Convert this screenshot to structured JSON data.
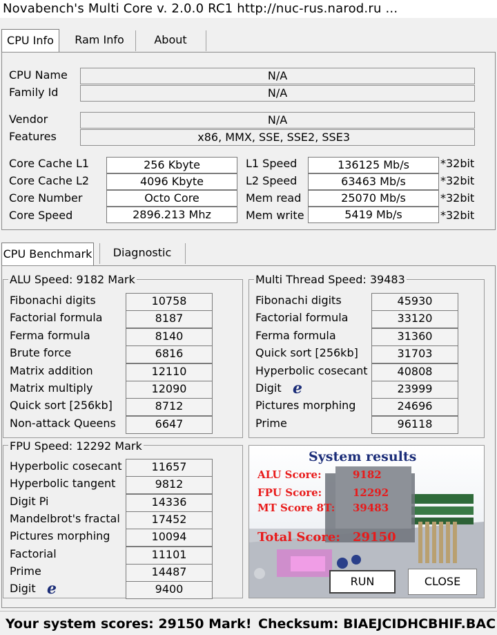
{
  "window": {
    "title": "Novabench's Multi Core  v. 2.0.0  RC1  http://nuc-rus.narod.ru ..."
  },
  "main_tabs": [
    "CPU Info",
    "Ram Info",
    "About"
  ],
  "cpu_info": {
    "cpu_name_label": "CPU Name",
    "cpu_name": "N/A",
    "family_label": "Family Id",
    "family": "N/A",
    "vendor_label": "Vendor",
    "vendor": "N/A",
    "features_label": "Features",
    "features": "x86, MMX, SSE, SSE2, SSE3",
    "cache_l1_label": "Core Cache L1",
    "cache_l1": "256 Kbyte",
    "cache_l2_label": "Core Cache L2",
    "cache_l2": "4096 Kbyte",
    "core_number_label": "Core Number",
    "core_number": "Octo Core",
    "core_speed_label": "Core Speed",
    "core_speed": "2896.213 Mhz",
    "l1_speed_label": "L1 Speed",
    "l1_speed": "136125 Mb/s",
    "l2_speed_label": "L2 Speed",
    "l2_speed": "63463 Mb/s",
    "mem_read_label": "Mem read",
    "mem_read": "25070 Mb/s",
    "mem_write_label": "Mem write",
    "mem_write": "5419 Mb/s",
    "bit_suffix": "*32bit"
  },
  "sub_tabs": [
    "CPU Benchmark",
    "Diagnostic"
  ],
  "alu": {
    "title": "ALU Speed: 9182 Mark",
    "items": [
      {
        "label": "Fibonachi digits",
        "value": "10758"
      },
      {
        "label": "Factorial formula",
        "value": "8187"
      },
      {
        "label": "Ferma formula",
        "value": "8140"
      },
      {
        "label": "Brute force",
        "value": "6816"
      },
      {
        "label": "Matrix addition",
        "value": "12110"
      },
      {
        "label": "Matrix multiply",
        "value": "12090"
      },
      {
        "label": "Quick sort [256kb]",
        "value": "8712"
      },
      {
        "label": "Non-attack Queens",
        "value": "6647"
      }
    ]
  },
  "mt": {
    "title": "Multi Thread Speed: 39483",
    "items": [
      {
        "label": "Fibonachi digits",
        "value": "45930"
      },
      {
        "label": "Factorial formula",
        "value": "33120"
      },
      {
        "label": "Ferma formula",
        "value": "31360"
      },
      {
        "label": "Quick sort [256kb]",
        "value": "31703"
      },
      {
        "label": "Hyperbolic cosecant",
        "value": "40808"
      },
      {
        "label": "Digit",
        "value": "23999"
      },
      {
        "label": "Pictures morphing",
        "value": "24696"
      },
      {
        "label": "Prime",
        "value": "96118"
      }
    ]
  },
  "fpu": {
    "title": "FPU Speed: 12292 Mark",
    "items": [
      {
        "label": "Hyperbolic cosecant",
        "value": "11657"
      },
      {
        "label": "Hyperbolic tangent",
        "value": "9812"
      },
      {
        "label": "Digit Pi",
        "value": "14336"
      },
      {
        "label": "Mandelbrot's fractal",
        "value": "17452"
      },
      {
        "label": "Pictures morphing",
        "value": "10094"
      },
      {
        "label": "Factorial",
        "value": "11101"
      },
      {
        "label": "Prime",
        "value": "14487"
      },
      {
        "label": "Digit",
        "value": "9400"
      }
    ]
  },
  "results": {
    "title": "System results",
    "alu_label": "ALU Score:",
    "alu_value": "9182",
    "fpu_label": "FPU Score:",
    "fpu_value": "12292",
    "mt_label": "MT Score 8T:",
    "mt_value": "39483",
    "total_label": "Total Score:",
    "total_value": "29150",
    "run_label": "RUN",
    "close_label": "CLOSE"
  },
  "status": {
    "scores": "Your system scores: 29150 Mark!",
    "checksum": "Checksum: BIAEJCIDHCBHIF.BAC"
  },
  "e_glyph": "e"
}
